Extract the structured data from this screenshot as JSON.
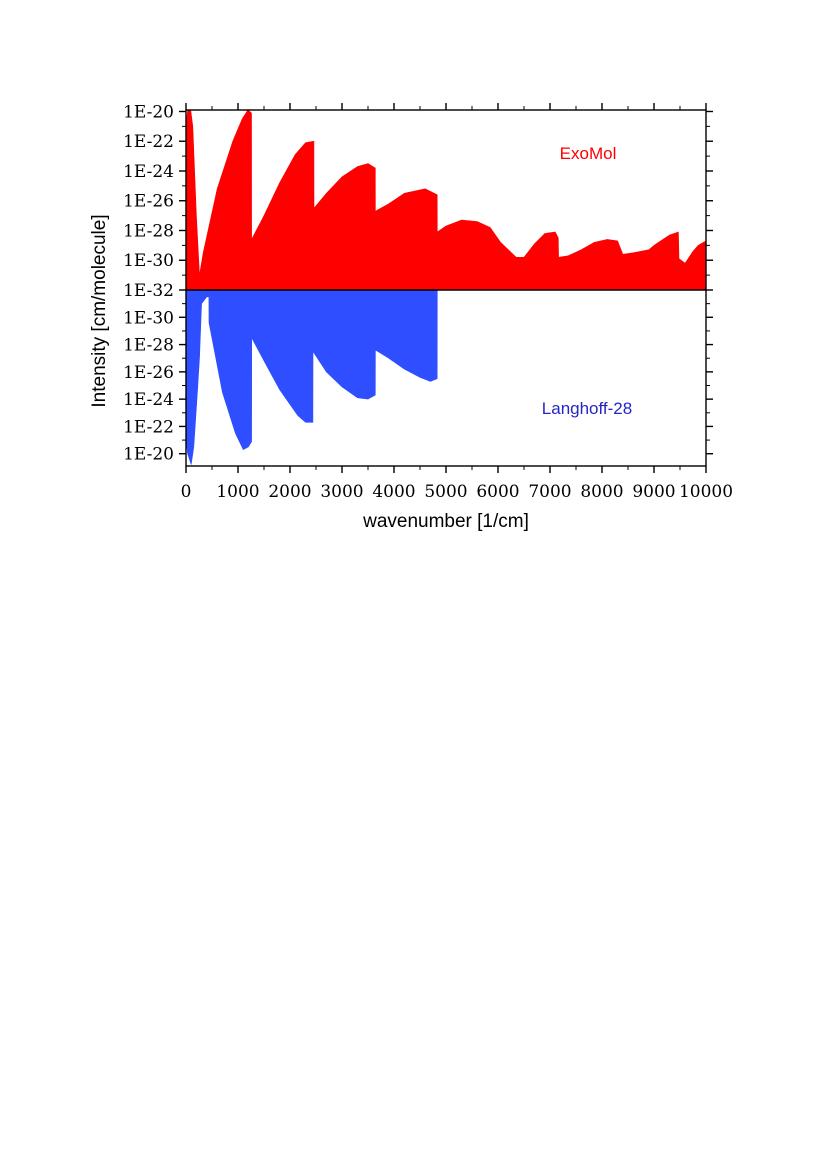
{
  "chart_data": {
    "type": "area",
    "xlabel": "wavenumber [1/cm]",
    "ylabel": "Intensity [cm/molecule]",
    "x_ticks": [
      0,
      1000,
      2000,
      3000,
      4000,
      5000,
      6000,
      7000,
      8000,
      9000,
      10000
    ],
    "x_range": [
      0,
      10000
    ],
    "grid": false,
    "scale": "log",
    "panels": [
      {
        "name": "ExoMol",
        "color": "#ff0000",
        "label_color": "#ff0000",
        "y_ticks": [
          "1E-20",
          "1E-22",
          "1E-24",
          "1E-26",
          "1E-28",
          "1E-30",
          "1E-32"
        ],
        "exp_range": [
          -32,
          -19.9
        ],
        "envelope": [
          [
            0,
            -21
          ],
          [
            30,
            -19.95
          ],
          [
            90,
            -19.9
          ],
          [
            130,
            -21
          ],
          [
            200,
            -27
          ],
          [
            260,
            -31
          ],
          [
            330,
            -29.5
          ],
          [
            600,
            -25.2
          ],
          [
            900,
            -22
          ],
          [
            1080,
            -20.5
          ],
          [
            1190,
            -19.9
          ],
          [
            1260,
            -20.1
          ],
          [
            1262,
            -28.6
          ],
          [
            1500,
            -27
          ],
          [
            1800,
            -24.8
          ],
          [
            2100,
            -22.9
          ],
          [
            2300,
            -22.1
          ],
          [
            2460,
            -22
          ],
          [
            2462,
            -26.5
          ],
          [
            2700,
            -25.5
          ],
          [
            3000,
            -24.4
          ],
          [
            3300,
            -23.7
          ],
          [
            3500,
            -23.5
          ],
          [
            3640,
            -23.8
          ],
          [
            3642,
            -26.7
          ],
          [
            3900,
            -26.2
          ],
          [
            4200,
            -25.5
          ],
          [
            4600,
            -25.2
          ],
          [
            4830,
            -25.6
          ],
          [
            4832,
            -28.1
          ],
          [
            5000,
            -27.7
          ],
          [
            5300,
            -27.3
          ],
          [
            5600,
            -27.4
          ],
          [
            5850,
            -27.8
          ],
          [
            6050,
            -28.8
          ],
          [
            6350,
            -29.8
          ],
          [
            6500,
            -29.8
          ],
          [
            6700,
            -28.9
          ],
          [
            6900,
            -28.2
          ],
          [
            7100,
            -28.1
          ],
          [
            7160,
            -28.5
          ],
          [
            7165,
            -29.8
          ],
          [
            7350,
            -29.7
          ],
          [
            7600,
            -29.3
          ],
          [
            7850,
            -28.8
          ],
          [
            8100,
            -28.6
          ],
          [
            8300,
            -28.7
          ],
          [
            8400,
            -29.6
          ],
          [
            8600,
            -29.5
          ],
          [
            8900,
            -29.3
          ],
          [
            9000,
            -29
          ],
          [
            9300,
            -28.3
          ],
          [
            9470,
            -28.1
          ],
          [
            9480,
            -29.9
          ],
          [
            9600,
            -30.2
          ],
          [
            9750,
            -29.4
          ],
          [
            9850,
            -29
          ],
          [
            10000,
            -28.7
          ]
        ]
      },
      {
        "name": "Langhoff-28",
        "color": "#2f4eff",
        "label_color": "#2525c8",
        "y_ticks": [
          "1E-30",
          "1E-28",
          "1E-26",
          "1E-24",
          "1E-22",
          "1E-20"
        ],
        "exp_range": [
          -32,
          -19.1
        ],
        "envelope": [
          [
            0,
            -21
          ],
          [
            30,
            -20
          ],
          [
            100,
            -19.2
          ],
          [
            150,
            -20.5
          ],
          [
            220,
            -24.5
          ],
          [
            260,
            -27
          ],
          [
            300,
            -31
          ],
          [
            400,
            -31.5
          ],
          [
            440,
            -31.5
          ],
          [
            442,
            -29.6
          ],
          [
            700,
            -24.5
          ],
          [
            950,
            -21.5
          ],
          [
            1100,
            -20.3
          ],
          [
            1200,
            -20.5
          ],
          [
            1262,
            -20.9
          ],
          [
            1264,
            -28.5
          ],
          [
            1500,
            -26.8
          ],
          [
            1800,
            -24.7
          ],
          [
            2150,
            -22.8
          ],
          [
            2300,
            -22.3
          ],
          [
            2440,
            -22.3
          ],
          [
            2442,
            -27.5
          ],
          [
            2700,
            -26
          ],
          [
            3000,
            -24.9
          ],
          [
            3300,
            -24.1
          ],
          [
            3500,
            -24
          ],
          [
            3640,
            -24.3
          ],
          [
            3642,
            -27.6
          ],
          [
            3900,
            -27
          ],
          [
            4200,
            -26.2
          ],
          [
            4500,
            -25.6
          ],
          [
            4700,
            -25.3
          ],
          [
            4830,
            -25.5
          ],
          [
            4832,
            -32
          ]
        ]
      }
    ]
  }
}
